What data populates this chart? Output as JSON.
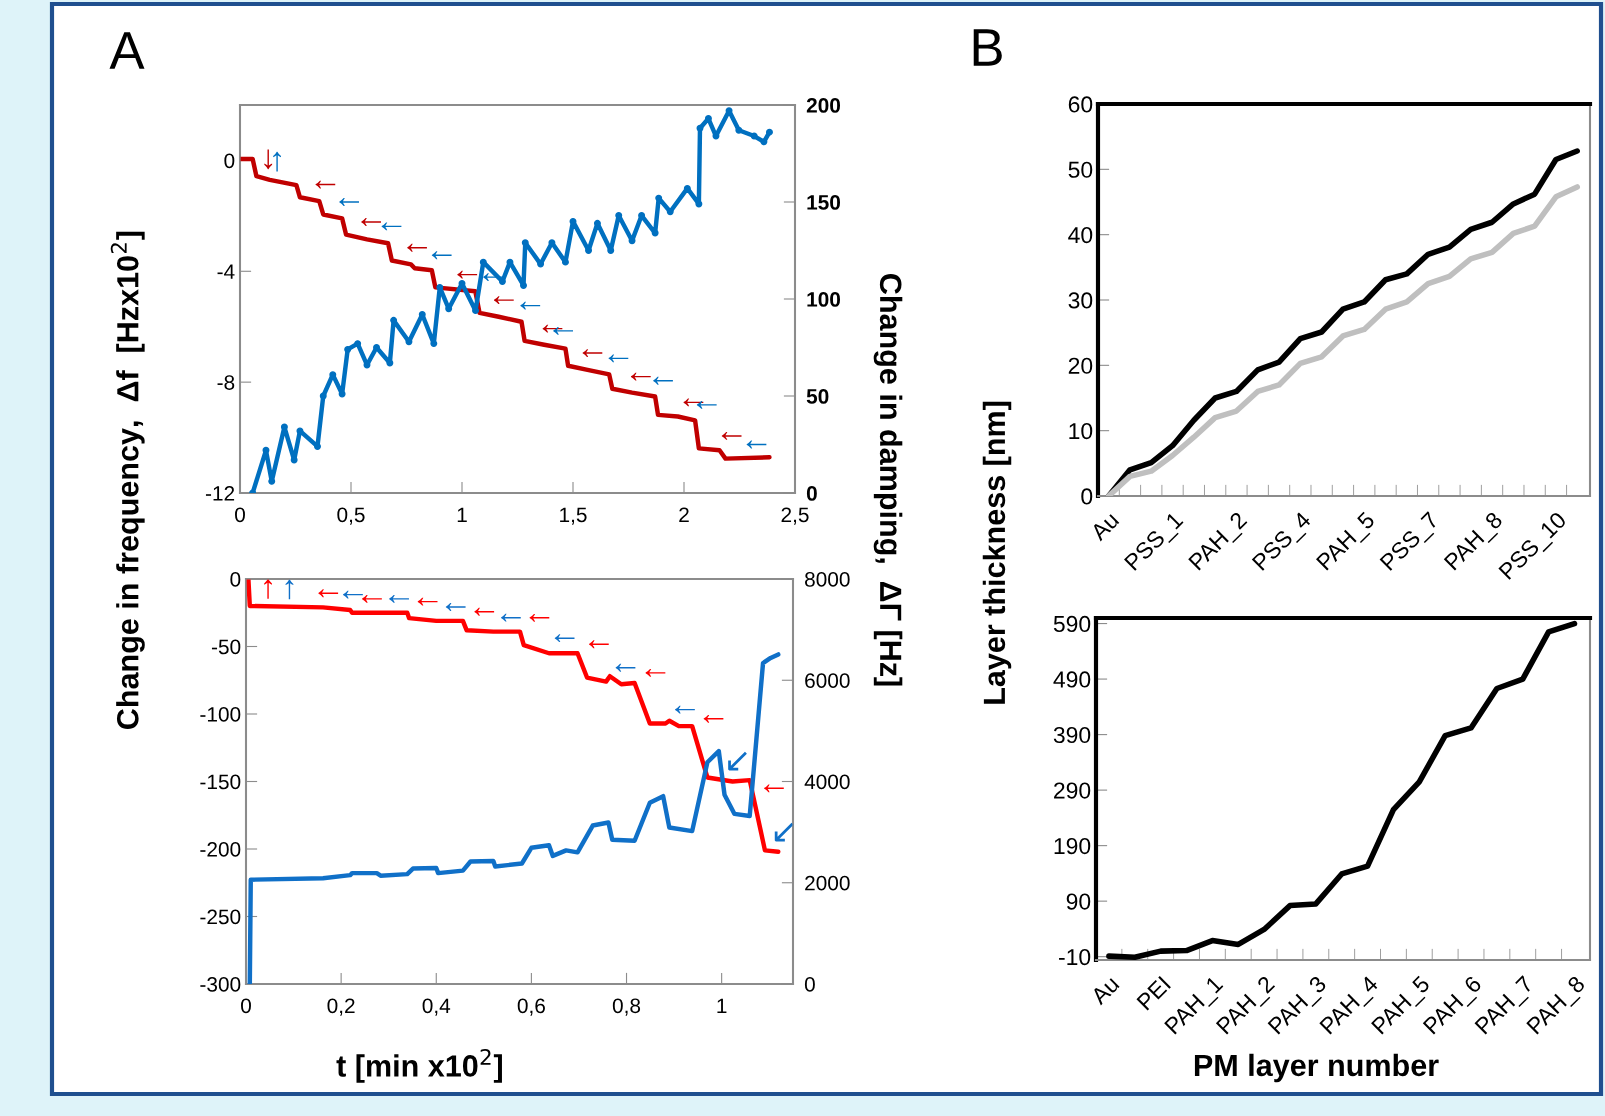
{
  "chart_data": [
    {
      "type": "line",
      "title": "A",
      "xlim": [
        0,
        2.5
      ],
      "xticks": [
        0,
        {
          "value": 0.5,
          "label": "0,5"
        },
        1,
        {
          "value": 1.5,
          "label": "1,5"
        },
        2,
        {
          "value": 2.5,
          "label": "2,5"
        }
      ],
      "ylim": [
        -12,
        2
      ],
      "yticks": [
        -12,
        -8,
        -4,
        0
      ],
      "y2lim": [
        0,
        200
      ],
      "y2ticks": [
        0,
        50,
        100,
        150,
        200
      ],
      "grid": false,
      "legend": false,
      "series": [
        {
          "color": "#c00000",
          "x": [
            0,
            0.057,
            0.074,
            0.134,
            0.254,
            0.27,
            0.357,
            0.375,
            0.46,
            0.478,
            0.572,
            0.667,
            0.684,
            0.77,
            0.787,
            0.864,
            0.88,
            1.06,
            1.079,
            1.165,
            1.268,
            1.282,
            1.37,
            1.466,
            1.478,
            1.56,
            1.663,
            1.677,
            1.766,
            1.87,
            1.883,
            1.972,
            2.05,
            2.067,
            2.16,
            2.187,
            2.385
          ],
          "values": [
            0.05,
            0.05,
            -0.57,
            -0.7,
            -0.89,
            -1.33,
            -1.47,
            -1.95,
            -2.09,
            -2.68,
            -2.85,
            -2.99,
            -3.61,
            -3.75,
            -3.89,
            -3.96,
            -4.58,
            -4.72,
            -5.5,
            -5.64,
            -5.82,
            -6.51,
            -6.65,
            -6.79,
            -7.41,
            -7.55,
            -7.72,
            -8.24,
            -8.38,
            -8.52,
            -9.18,
            -9.24,
            -9.38,
            -10.39,
            -10.46,
            -10.76,
            -10.71
          ]
        },
        {
          "color": "#0070c0",
          "axis": "y2",
          "marker": "circle",
          "x": [
            0.057,
            0.117,
            0.143,
            0.2,
            0.244,
            0.27,
            0.349,
            0.375,
            0.418,
            0.46,
            0.485,
            0.53,
            0.572,
            0.615,
            0.675,
            0.692,
            0.761,
            0.821,
            0.873,
            0.9,
            0.94,
            1.0,
            1.061,
            1.096,
            1.182,
            1.216,
            1.277,
            1.285,
            1.354,
            1.405,
            1.466,
            1.5,
            1.57,
            1.61,
            1.67,
            1.706,
            1.766,
            1.809,
            1.87,
            1.886,
            1.938,
            2.015,
            2.067,
            2.072,
            2.11,
            2.144,
            2.203,
            2.247,
            2.316,
            2.36,
            2.385
          ],
          "values": [
            0,
            22,
            6,
            34,
            17,
            32,
            24,
            50,
            61,
            51,
            74,
            77,
            66,
            75,
            67,
            89,
            78,
            92,
            77,
            106,
            95,
            108,
            94,
            119,
            109,
            119,
            107,
            129,
            118,
            129,
            119,
            140,
            125,
            139,
            125,
            143,
            130,
            143,
            134,
            152,
            145,
            157,
            149,
            188,
            193,
            184,
            197,
            187,
            184,
            181,
            186
          ]
        }
      ],
      "annotations": [
        {
          "text": "↓",
          "x": 0.077,
          "y": -0.58
        },
        {
          "text": "↑",
          "x": 0.117,
          "y": -0.66
        },
        {
          "text": "←",
          "x": 0.297,
          "y": -1.37
        },
        {
          "text": "←",
          "x": 0.404,
          "y": -2.0
        },
        {
          "text": "←",
          "x": 0.503,
          "y": -2.72
        },
        {
          "text": "←",
          "x": 0.595,
          "y": -2.88
        },
        {
          "text": "←",
          "x": 0.71,
          "y": -3.65
        },
        {
          "text": "←",
          "x": 0.821,
          "y": -3.92
        },
        {
          "text": "←",
          "x": 0.936,
          "y": -4.62
        },
        {
          "text": "←",
          "x": 1.053,
          "y": -4.71
        },
        {
          "text": "←",
          "x": 1.101,
          "y": -5.54
        },
        {
          "text": "←",
          "x": 1.22,
          "y": -5.74
        },
        {
          "text": "←",
          "x": 1.32,
          "y": -6.57
        },
        {
          "text": "←",
          "x": 1.368,
          "y": -6.65
        },
        {
          "text": "←",
          "x": 1.5,
          "y": -7.45
        },
        {
          "text": "←",
          "x": 1.617,
          "y": -7.64
        },
        {
          "text": "←",
          "x": 1.718,
          "y": -8.3
        },
        {
          "text": "←",
          "x": 1.818,
          "y": -8.45
        },
        {
          "text": "←",
          "x": 1.955,
          "y": -9.23
        },
        {
          "text": "←",
          "x": 2.015,
          "y": -9.32
        },
        {
          "text": "←",
          "x": 2.127,
          "y": -10.44
        },
        {
          "text": "←",
          "x": 2.239,
          "y": -10.75
        }
      ]
    },
    {
      "type": "line",
      "xlabel": "t [min x10$^{2}$]",
      "ylabel": "Change in frequency,  Δf  [Hzx10$^{2}$]",
      "y2label": "Change in damping,  ΔΓ [Hz]",
      "xlim": [
        0,
        1.15
      ],
      "xticks": [
        0,
        {
          "value": 0.2,
          "label": "0,2"
        },
        {
          "value": 0.4,
          "label": "0,4"
        },
        {
          "value": 0.6,
          "label": "0,6"
        },
        {
          "value": 0.8,
          "label": "0,8"
        },
        1
      ],
      "ylim": [
        -300,
        0
      ],
      "yticks": [
        -300,
        -250,
        -200,
        -150,
        -100,
        -50,
        0
      ],
      "y2lim": [
        0,
        8000
      ],
      "y2ticks": [
        0,
        2000,
        4000,
        6000,
        8000
      ],
      "grid": false,
      "legend": false,
      "series": [
        {
          "color": "#ff0000",
          "x": [
            0.005,
            0.008,
            0.162,
            0.219,
            0.223,
            0.339,
            0.343,
            0.4,
            0.456,
            0.464,
            0.52,
            0.576,
            0.584,
            0.637,
            0.697,
            0.717,
            0.757,
            0.765,
            0.789,
            0.817,
            0.849,
            0.882,
            0.89,
            0.91,
            0.938,
            0.97,
            1.023,
            1.059,
            1.091,
            1.119
          ],
          "values": [
            0,
            -20,
            -21,
            -23,
            -25,
            -25,
            -29,
            -31,
            -31,
            -38,
            -39,
            -39,
            -49,
            -55,
            -55,
            -73,
            -76,
            -72,
            -78,
            -77,
            -107,
            -107,
            -105,
            -109,
            -109,
            -147,
            -150,
            -149,
            -201,
            -202
          ]
        },
        {
          "color": "#1070c8",
          "axis": "y2",
          "x": [
            0.008,
            0.01,
            0.162,
            0.219,
            0.223,
            0.275,
            0.283,
            0.339,
            0.351,
            0.4,
            0.404,
            0.456,
            0.472,
            0.52,
            0.524,
            0.58,
            0.6,
            0.637,
            0.645,
            0.673,
            0.697,
            0.729,
            0.762,
            0.77,
            0.817,
            0.849,
            0.877,
            0.89,
            0.938,
            0.97,
            0.994,
            1.006,
            1.027,
            1.059,
            1.087,
            1.103,
            1.119
          ],
          "values": [
            0,
            2060,
            2090,
            2150,
            2190,
            2190,
            2140,
            2170,
            2280,
            2290,
            2190,
            2240,
            2420,
            2430,
            2320,
            2380,
            2690,
            2740,
            2530,
            2640,
            2600,
            3130,
            3190,
            2850,
            2830,
            3580,
            3710,
            3090,
            3020,
            4380,
            4600,
            3740,
            3360,
            3320,
            6340,
            6440,
            6510
          ]
        }
      ],
      "annotations": [
        {
          "text": "↑",
          "x": 0.023,
          "y": -20.1
        },
        {
          "text": "↑",
          "x": 0.068,
          "y": -20.4
        },
        {
          "text": "←",
          "x": 0.132,
          "y": -20.8
        },
        {
          "text": "←",
          "x": 0.184,
          "y": -21.8
        },
        {
          "text": "←",
          "x": 0.224,
          "y": -25
        },
        {
          "text": "←",
          "x": 0.281,
          "y": -25
        },
        {
          "text": "←",
          "x": 0.341,
          "y": -27
        },
        {
          "text": "←",
          "x": 0.4,
          "y": -31
        },
        {
          "text": "←",
          "x": 0.46,
          "y": -34.5
        },
        {
          "text": "←",
          "x": 0.516,
          "y": -38.9
        },
        {
          "text": "←",
          "x": 0.576,
          "y": -39
        },
        {
          "text": "←",
          "x": 0.629,
          "y": -54.1
        },
        {
          "text": "←",
          "x": 0.701,
          "y": -58.6
        },
        {
          "text": "←",
          "x": 0.757,
          "y": -76
        },
        {
          "text": "←",
          "x": 0.82,
          "y": -79.8
        },
        {
          "text": "←",
          "x": 0.882,
          "y": -107
        },
        {
          "text": "←",
          "x": 0.942,
          "y": -113.8
        },
        {
          "text": "↙",
          "x": 0.998,
          "y": -148.6
        },
        {
          "text": "←",
          "x": 1.069,
          "y": -165.3
        },
        {
          "text": "↙",
          "x": 1.096,
          "y": -201.2
        }
      ]
    },
    {
      "type": "line",
      "title": "B",
      "ylabel": "Layer thickness [nm]",
      "categories": [
        "Au",
        null,
        null,
        "PSS_1",
        null,
        null,
        "PAH_2",
        null,
        null,
        "PSS_4",
        null,
        null,
        "PAH_5",
        null,
        null,
        "PSS_7",
        null,
        null,
        "PAH_8",
        null,
        null,
        "PSS_10",
        null
      ],
      "ylim": [
        0,
        60
      ],
      "yticks": [
        0,
        10,
        20,
        30,
        40,
        50,
        60
      ],
      "grid": false,
      "legend": false,
      "series": [
        {
          "color": "#000000",
          "values": [
            0,
            4.0,
            5.1,
            7.7,
            11.6,
            15.0,
            16.0,
            19.3,
            20.5,
            24.1,
            25.1,
            28.6,
            29.7,
            33.1,
            34.0,
            37.0,
            38.1,
            40.8,
            41.9,
            44.7,
            46.2,
            51.5,
            52.8
          ]
        },
        {
          "color": "#bfbfbf",
          "values": [
            0,
            3.0,
            3.8,
            6.2,
            9.0,
            12.0,
            13.0,
            16.0,
            17.0,
            20.3,
            21.3,
            24.5,
            25.5,
            28.6,
            29.7,
            32.5,
            33.6,
            36.3,
            37.3,
            40.2,
            41.3,
            45.8,
            47.3
          ]
        }
      ]
    },
    {
      "type": "line",
      "xlabel": "PM layer number",
      "categories": [
        "Au",
        null,
        "PEI",
        null,
        "PAH_1",
        null,
        "PAH_2",
        null,
        "PAH_3",
        null,
        "PAH_4",
        null,
        "PAH_5",
        null,
        "PAH_6",
        null,
        "PAH_7",
        null,
        "PAH_8"
      ],
      "ylim": [
        -16,
        600
      ],
      "yticks": [
        -10,
        90,
        190,
        290,
        390,
        490,
        590
      ],
      "grid": false,
      "legend": false,
      "series": [
        {
          "color": "#000000",
          "values": [
            -9,
            -11,
            0,
            1,
            19,
            12,
            39,
            82,
            85,
            139,
            153,
            255,
            305,
            388,
            402,
            473,
            490,
            575,
            590
          ]
        }
      ]
    }
  ]
}
